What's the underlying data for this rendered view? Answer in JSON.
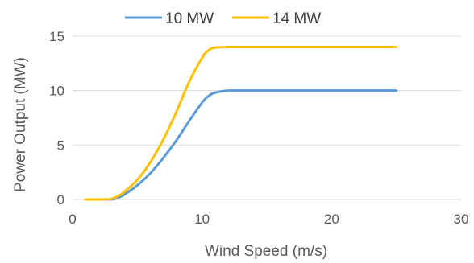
{
  "chart_data": {
    "type": "line",
    "title": "",
    "xlabel": "Wind Speed (m/s)",
    "ylabel": "Power Output (MW)",
    "xlim": [
      0,
      30
    ],
    "ylim": [
      0,
      15
    ],
    "x_ticks": [
      0,
      10,
      20,
      30
    ],
    "y_ticks": [
      0,
      5,
      10,
      15
    ],
    "grid": "horizontal",
    "legend_position": "top",
    "series": [
      {
        "name": "10 MW",
        "color": "#5B9BD5",
        "x": [
          1,
          2,
          3,
          3.5,
          4,
          5,
          6,
          7,
          8,
          9,
          10,
          10.5,
          11,
          12,
          13,
          15,
          20,
          25
        ],
        "y": [
          0,
          0,
          0,
          0.15,
          0.45,
          1.3,
          2.4,
          3.8,
          5.4,
          7.2,
          8.9,
          9.5,
          9.8,
          10,
          10,
          10,
          10,
          10
        ]
      },
      {
        "name": "14 MW",
        "color": "#FFC000",
        "x": [
          1,
          2,
          3,
          3.5,
          4,
          5,
          6,
          7,
          8,
          9,
          10,
          10.5,
          11,
          12,
          13,
          15,
          20,
          25
        ],
        "y": [
          0,
          0,
          0.05,
          0.3,
          0.7,
          1.8,
          3.4,
          5.5,
          8.0,
          10.8,
          13.0,
          13.7,
          13.95,
          14,
          14,
          14,
          14,
          14
        ]
      }
    ]
  }
}
